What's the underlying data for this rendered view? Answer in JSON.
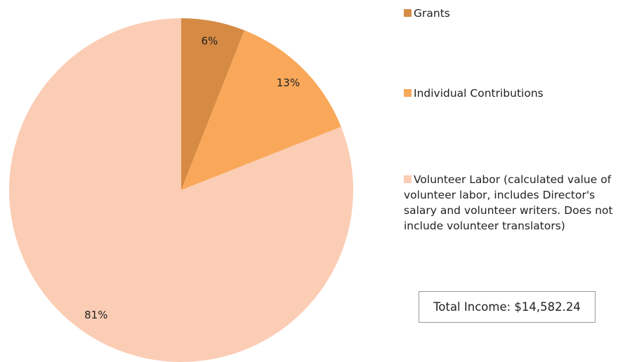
{
  "chart_data": {
    "type": "pie",
    "categories": [
      "Grants",
      "Individual Contributions",
      "Volunteer Labor (calculated value of volunteer labor, includes Director's salary and volunteer writers. Does not include volunteer translators)"
    ],
    "values": [
      6,
      13,
      81
    ],
    "value_labels": [
      "6%",
      "13%",
      "81%"
    ],
    "colors": [
      "#d68b45",
      "#f9a85a",
      "#fbcdb4"
    ],
    "annotation": "Total Income: $14,582.24"
  }
}
